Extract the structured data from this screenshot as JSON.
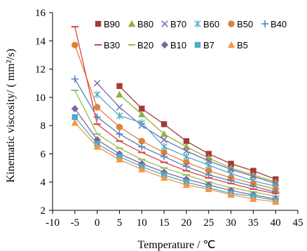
{
  "chart_data": {
    "type": "line",
    "xlabel": "Temperature / ℃",
    "ylabel": "Kinematic viscosity/ ( mm²/s)",
    "xlim": [
      -10,
      45
    ],
    "ylim": [
      2,
      16
    ],
    "x_ticks": [
      -10,
      -5,
      0,
      5,
      10,
      15,
      20,
      25,
      30,
      35,
      40,
      45
    ],
    "y_ticks": [
      2,
      4,
      6,
      8,
      10,
      12,
      14,
      16
    ],
    "grid": false,
    "legend_position": "top-right",
    "series": [
      {
        "name": "B90",
        "marker": "square",
        "color": "#a43b36",
        "x": [
          5,
          10,
          15,
          20,
          25,
          30,
          35,
          40
        ],
        "y": [
          10.8,
          9.2,
          8.1,
          6.9,
          6.0,
          5.3,
          4.8,
          4.2
        ]
      },
      {
        "name": "B80",
        "marker": "triangle",
        "color": "#8db040",
        "x": [
          5,
          10,
          15,
          20,
          25,
          30,
          35,
          40
        ],
        "y": [
          10.2,
          8.8,
          7.4,
          6.5,
          5.7,
          5.0,
          4.5,
          4.0
        ]
      },
      {
        "name": "B70",
        "marker": "x",
        "color": "#7b6ab2",
        "x": [
          0,
          5,
          10,
          15,
          20,
          25,
          30,
          35,
          40
        ],
        "y": [
          11.0,
          9.3,
          8.0,
          7.0,
          6.2,
          5.5,
          4.9,
          4.4,
          3.9
        ]
      },
      {
        "name": "B60",
        "marker": "asterisk",
        "color": "#4bacc6",
        "x": [
          0,
          5,
          10,
          15,
          20,
          25,
          30,
          35,
          40
        ],
        "y": [
          10.2,
          8.7,
          8.2,
          6.5,
          5.8,
          5.2,
          4.6,
          4.1,
          3.7
        ]
      },
      {
        "name": "B50",
        "marker": "circle",
        "color": "#e0813a",
        "x": [
          -5,
          0,
          5,
          10,
          15,
          20,
          25,
          30,
          35,
          40
        ],
        "y": [
          13.7,
          9.3,
          7.9,
          6.9,
          6.1,
          5.4,
          4.8,
          4.3,
          3.9,
          3.5
        ]
      },
      {
        "name": "B40",
        "marker": "plus",
        "color": "#4f81bd",
        "x": [
          -5,
          0,
          5,
          10,
          15,
          20,
          25,
          30,
          35,
          40
        ],
        "y": [
          11.3,
          8.6,
          7.4,
          6.5,
          5.8,
          5.1,
          4.5,
          4.1,
          3.7,
          3.3
        ]
      },
      {
        "name": "B30",
        "marker": "dash",
        "color": "#d94444",
        "x": [
          -5,
          0,
          5,
          10,
          15,
          20,
          25,
          30,
          35,
          40
        ],
        "y": [
          15.0,
          8.1,
          6.9,
          6.1,
          5.4,
          4.8,
          4.3,
          3.9,
          3.5,
          3.2
        ]
      },
      {
        "name": "B20",
        "marker": "dash",
        "color": "#9bbb59",
        "x": [
          -5,
          0,
          5,
          10,
          15,
          20,
          25,
          30,
          35,
          40
        ],
        "y": [
          10.5,
          7.4,
          6.4,
          5.6,
          5.0,
          4.5,
          4.0,
          3.6,
          3.3,
          3.0
        ]
      },
      {
        "name": "B10",
        "marker": "diamond",
        "color": "#8064a2",
        "x": [
          -5,
          0,
          5,
          10,
          15,
          20,
          25,
          30,
          35,
          40
        ],
        "y": [
          9.2,
          7.0,
          6.0,
          5.3,
          4.7,
          4.2,
          3.8,
          3.4,
          3.1,
          2.8
        ]
      },
      {
        "name": "B7",
        "marker": "square",
        "color": "#4bacc6",
        "x": [
          -5,
          0,
          5,
          10,
          15,
          20,
          25,
          30,
          35,
          40
        ],
        "y": [
          8.6,
          6.7,
          5.8,
          5.1,
          4.5,
          4.0,
          3.6,
          3.2,
          3.0,
          2.7
        ]
      },
      {
        "name": "B5",
        "marker": "triangle",
        "color": "#f79646",
        "x": [
          -5,
          0,
          5,
          10,
          15,
          20,
          25,
          30,
          35,
          40
        ],
        "y": [
          8.2,
          6.5,
          5.6,
          4.9,
          4.3,
          3.8,
          3.5,
          3.1,
          2.8,
          2.6
        ]
      }
    ]
  }
}
